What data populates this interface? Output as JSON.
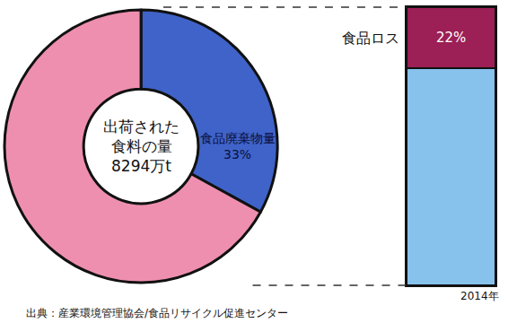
{
  "chart_data": [
    {
      "type": "pie",
      "categories": [
        "食品廃棄物量",
        null
      ],
      "values": [
        33,
        67
      ],
      "value_labels": [
        "33%",
        null
      ],
      "colors": [
        "#3f63c8",
        "#ee8fb0"
      ],
      "data_labels": true,
      "center_text": [
        "出荷された",
        "食料の量",
        "8294万t"
      ]
    },
    {
      "type": "bar",
      "stacked": true,
      "categories": [
        null
      ],
      "series": [
        {
          "color": "#86c2ec",
          "values": [
            78
          ]
        },
        {
          "name": "食品ロス",
          "color": "#9c1f55",
          "values": [
            22
          ],
          "value_labels": [
            "22%"
          ]
        }
      ],
      "ylim": [
        0,
        100
      ],
      "tick_labels": false,
      "data_labels": true,
      "annotations": [
        "2014年",
        "出典：産業環境管理協会/食品リサイクル促進センター"
      ]
    }
  ]
}
